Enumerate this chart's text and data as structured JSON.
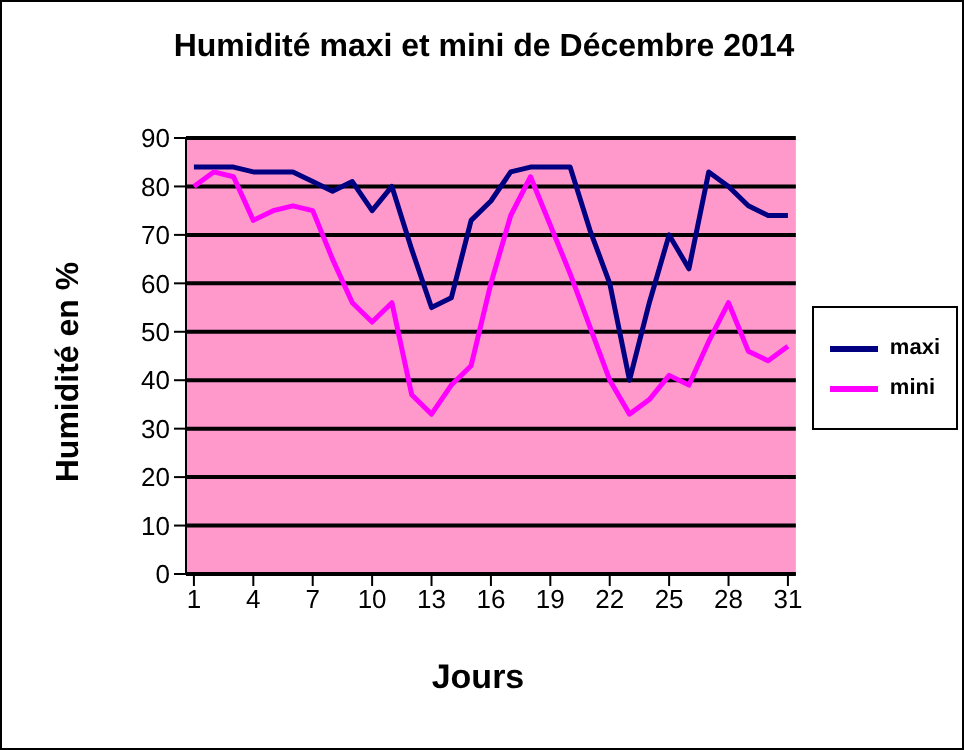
{
  "chart_data": {
    "type": "line",
    "title": "Humidité maxi et mini de Décembre 2014",
    "xlabel": "Jours",
    "ylabel": "Humidité en %",
    "x": [
      1,
      2,
      3,
      4,
      5,
      6,
      7,
      8,
      9,
      10,
      11,
      12,
      13,
      14,
      15,
      16,
      17,
      18,
      19,
      20,
      21,
      22,
      23,
      24,
      25,
      26,
      27,
      28,
      29,
      30,
      31
    ],
    "series": [
      {
        "name": "maxi",
        "color": "#000080",
        "values": [
          84,
          84,
          84,
          83,
          83,
          83,
          81,
          79,
          81,
          75,
          80,
          67,
          55,
          57,
          73,
          77,
          83,
          84,
          84,
          84,
          71,
          60,
          40,
          56,
          70,
          63,
          83,
          80,
          76,
          74,
          74
        ]
      },
      {
        "name": "mini",
        "color": "#ff00ff",
        "values": [
          80,
          83,
          82,
          73,
          75,
          76,
          75,
          65,
          56,
          52,
          56,
          37,
          33,
          39,
          43,
          60,
          74,
          82,
          72,
          62,
          51,
          40,
          33,
          36,
          41,
          39,
          48,
          56,
          46,
          44,
          47
        ]
      }
    ],
    "xlim": [
      0.6,
      31.4
    ],
    "xticks": [
      1,
      4,
      7,
      10,
      13,
      16,
      19,
      22,
      25,
      28,
      31
    ],
    "ylim": [
      0,
      90
    ],
    "yticks": [
      0,
      10,
      20,
      30,
      40,
      50,
      60,
      70,
      80,
      90
    ],
    "grid": "y",
    "legend": "right",
    "marker": "none",
    "line_style": "solid"
  }
}
